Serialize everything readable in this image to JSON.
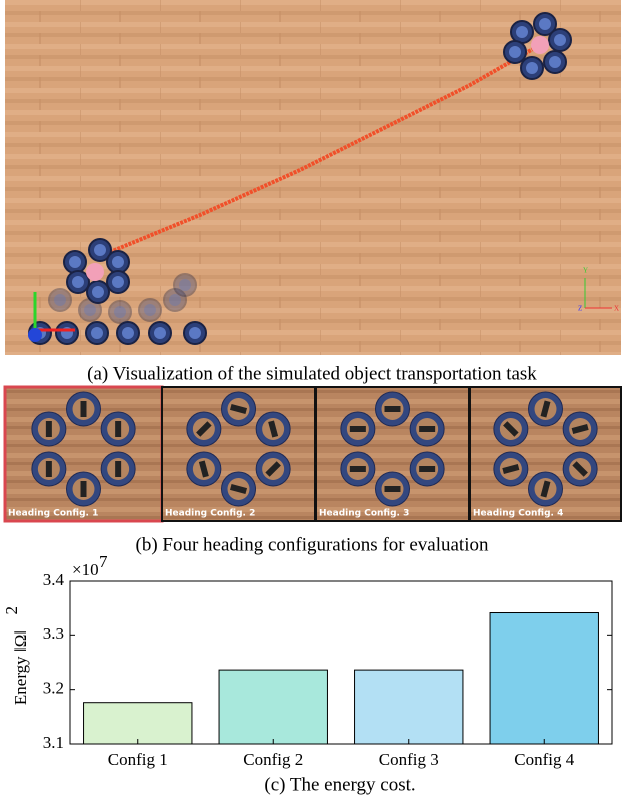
{
  "figure": {
    "caption_a": "(a) Visualization of the simulated object transportation task",
    "gizmo_labels": [
      "Y",
      "Z",
      "X"
    ],
    "panels": [
      "Heading Config. 1",
      "Heading Config. 2",
      "Heading Config. 3",
      "Heading Config. 4"
    ],
    "caption_b": "(b) Four heading configurations for evaluation",
    "caption_c": "(c) The energy cost."
  },
  "chart_data": {
    "type": "bar",
    "y_label": "Energy ‖Ω‖",
    "y_label_sup": "2",
    "y_scale_label": "×10",
    "y_scale_sup": "7",
    "categories": [
      "Config 1",
      "Config 2",
      "Config 3",
      "Config 4"
    ],
    "values": [
      3.176,
      3.236,
      3.236,
      3.342
    ],
    "colors": [
      "#d9f2cf",
      "#a8e8dc",
      "#b3e0f4",
      "#7ecfec"
    ],
    "ylim": [
      3.1,
      3.4
    ],
    "yticks": [
      3.1,
      3.2,
      3.3,
      3.4
    ]
  }
}
